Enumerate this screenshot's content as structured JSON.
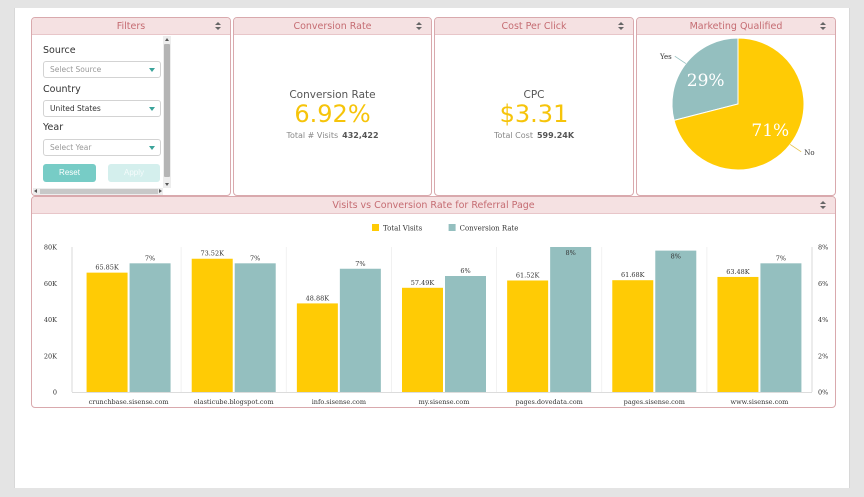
{
  "colors": {
    "accent_yellow": "#FFCB05",
    "accent_teal": "#94BFBF",
    "header_bg": "#F5E1E2",
    "title_text": "#C56C72",
    "button_teal": "#77CCC6"
  },
  "filters": {
    "title": "Filters",
    "source": {
      "label": "Source",
      "placeholder": "Select Source"
    },
    "country": {
      "label": "Country",
      "value": "United States"
    },
    "year": {
      "label": "Year",
      "placeholder": "Select Year"
    },
    "reset_label": "Reset",
    "apply_label": "Apply"
  },
  "conversion_rate": {
    "title": "Conversion Rate",
    "label": "Conversion Rate",
    "value": "6.92%",
    "sub_label": "Total # Visits",
    "sub_value": "432,422"
  },
  "cpc": {
    "title": "Cost Per Click",
    "label": "CPC",
    "value": "$3.31",
    "sub_label": "Total Cost",
    "sub_value": "599.24K"
  },
  "marketing_qualified": {
    "title": "Marketing Qualified",
    "chart_data": {
      "type": "pie",
      "slices": [
        {
          "label": "Yes",
          "value": 29,
          "value_label": "29%",
          "color": "#94BFBF"
        },
        {
          "label": "No",
          "value": 71,
          "value_label": "71%",
          "color": "#FFCB05"
        }
      ]
    }
  },
  "visits_chart": {
    "title": "Visits vs Conversion Rate for Referral Page",
    "chart_data": {
      "type": "bar",
      "categories": [
        "crunchbase.sisense.com",
        "elasticube.blogspot.com",
        "info.sisense.com",
        "my.sisense.com",
        "pages.dovedata.com",
        "pages.sisense.com",
        "www.sisense.com"
      ],
      "series": [
        {
          "name": "Total Visits",
          "color": "#FFCB05",
          "axis": "left",
          "values": [
            65850,
            73520,
            48880,
            57490,
            61520,
            61680,
            63480
          ],
          "labels": [
            "65.85K",
            "73.52K",
            "48.88K",
            "57.49K",
            "61.52K",
            "61.68K",
            "63.48K"
          ]
        },
        {
          "name": "Conversion Rate",
          "color": "#94BFBF",
          "axis": "right",
          "values": [
            7.1,
            7.1,
            6.8,
            6.4,
            8.0,
            7.8,
            7.1
          ],
          "labels": [
            "7%",
            "7%",
            "7%",
            "6%",
            "8%",
            "8%",
            "7%"
          ]
        }
      ],
      "y_left": {
        "ylim": [
          0,
          80000
        ],
        "ticks": [
          "0",
          "20K",
          "40K",
          "60K",
          "80K"
        ]
      },
      "y_right": {
        "ylim": [
          0,
          8
        ],
        "ticks": [
          "0%",
          "2%",
          "4%",
          "6%",
          "8%"
        ]
      },
      "legend": "top-center"
    }
  }
}
